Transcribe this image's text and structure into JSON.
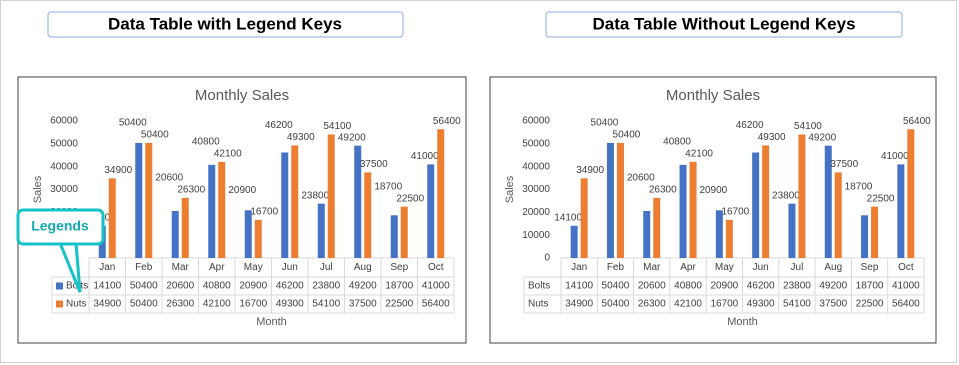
{
  "headers": [
    "Data Table with Legend Keys",
    "Data Table Without Legend Keys"
  ],
  "callout": "Legends",
  "chart_data": [
    {
      "type": "bar",
      "title": "Monthly Sales",
      "ylabel": "Sales",
      "xlabel": "Month",
      "categories": [
        "Jan",
        "Feb",
        "Mar",
        "Apr",
        "May",
        "Jun",
        "Jul",
        "Aug",
        "Sep",
        "Oct"
      ],
      "series": [
        {
          "name": "Bolts",
          "color": "#4472c4",
          "values": [
            14100,
            50400,
            20600,
            40800,
            20900,
            46200,
            23800,
            49200,
            18700,
            41000
          ]
        },
        {
          "name": "Nuts",
          "color": "#ed7d31",
          "values": [
            34900,
            50400,
            26300,
            42100,
            16700,
            49300,
            54100,
            37500,
            22500,
            56400
          ]
        }
      ],
      "ylim": [
        0,
        60000
      ],
      "yticks": [
        0,
        10000,
        20000,
        30000,
        40000,
        50000,
        60000
      ],
      "grid": false,
      "legend_keys": true
    },
    {
      "type": "bar",
      "title": "Monthly Sales",
      "ylabel": "Sales",
      "xlabel": "Month",
      "categories": [
        "Jan",
        "Feb",
        "Mar",
        "Apr",
        "May",
        "Jun",
        "Jul",
        "Aug",
        "Sep",
        "Oct"
      ],
      "series": [
        {
          "name": "Bolts",
          "color": "#4472c4",
          "values": [
            14100,
            50400,
            20600,
            40800,
            20900,
            46200,
            23800,
            49200,
            18700,
            41000
          ]
        },
        {
          "name": "Nuts",
          "color": "#ed7d31",
          "values": [
            34900,
            50400,
            26300,
            42100,
            16700,
            49300,
            54100,
            37500,
            22500,
            56400
          ]
        }
      ],
      "ylim": [
        0,
        60000
      ],
      "yticks": [
        0,
        10000,
        20000,
        30000,
        40000,
        50000,
        60000
      ],
      "grid": false,
      "legend_keys": false
    }
  ]
}
